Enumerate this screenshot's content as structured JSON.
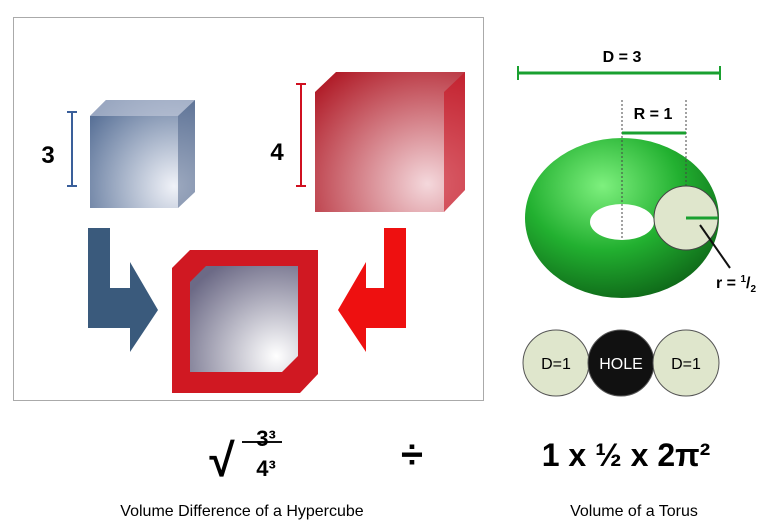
{
  "hypercube": {
    "small_label": "3",
    "large_label": "4",
    "formula": {
      "radical": "√",
      "numerator": "3³",
      "denominator": "4³"
    },
    "caption": "Volume Difference of a Hypercube"
  },
  "operator": "÷",
  "torus": {
    "diameter_label": "D = 3",
    "major_radius_label": "R = 1",
    "minor_radius_label": {
      "prefix": "r = ",
      "numerator": "1",
      "slash": "/",
      "denominator": "2"
    },
    "circles": [
      "D=1",
      "HOLE",
      "D=1"
    ],
    "formula": "1 x ½ x 2π²",
    "caption": "Volume of a Torus"
  }
}
